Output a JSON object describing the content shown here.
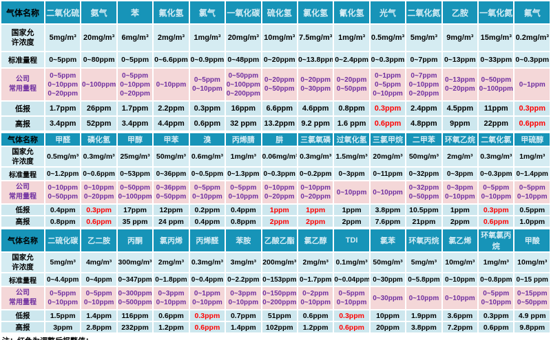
{
  "row_labels": {
    "gas": "气体名称",
    "national": [
      "国家允",
      "许浓度"
    ],
    "standard": "标准量程",
    "company": [
      "公司",
      "常用量程"
    ],
    "low": "低报",
    "high": "高报"
  },
  "note": "注：红色为调整后报警值；",
  "colors": {
    "header_teal": "#1794b8",
    "gas_name_text": "#d5ecf4",
    "cell_light_blue": "#d5ecf2",
    "alarm_row_blue": "#cde7ee",
    "company_pink": "#f4d7d8",
    "company_text_purple": "#7030a0",
    "alarm_red": "#ff0000",
    "grid_white": "#ffffff"
  },
  "sections": [
    {
      "gases": [
        {
          "name": "二氧化硫",
          "national": "5mg/m³",
          "standard": "0~5ppm",
          "company": [
            "0~5ppm",
            "0~10ppm",
            "0~20ppm"
          ],
          "low": "1.7ppm",
          "high": "3.4ppm",
          "red": false
        },
        {
          "name": "氨气",
          "national": "20mg/m³",
          "standard": "0~80ppm",
          "company": [
            "0~100ppm"
          ],
          "low": "26ppm",
          "high": "52ppm",
          "red": false
        },
        {
          "name": "苯",
          "national": "6mg/m³",
          "standard": "0~5ppm",
          "company": [
            "0~5ppm",
            "0~10ppm",
            "0~20ppm"
          ],
          "low": "1.7ppm",
          "high": "3.4ppm",
          "red": false
        },
        {
          "name": "氟化氢",
          "national": "2mg/m³",
          "standard": "0~6.6ppm",
          "company": [
            "0~10ppm"
          ],
          "low": "2.2ppm",
          "high": "4.4ppm",
          "red": false
        },
        {
          "name": "氯气",
          "national": "1mg/m³",
          "standard": "0~0.9ppm",
          "company": [
            "0~5ppm",
            "0~10ppm"
          ],
          "low": "0.3ppm",
          "high": "0.6ppm",
          "red": false
        },
        {
          "name": "一氧化碳",
          "national": "20mg/m³",
          "standard": "0~48ppm",
          "company": [
            "0~50ppm",
            "0~100ppm",
            "0~200ppm"
          ],
          "low": "16ppm",
          "high": "32 ppm",
          "red": false
        },
        {
          "name": "硫化氢",
          "national": "10mg/m³",
          "standard": "0~20ppm",
          "company": [
            "0~20ppm",
            "0~50ppm"
          ],
          "low": "6.6ppm",
          "high": "13.2ppm",
          "red": false
        },
        {
          "name": "氯化氢",
          "national": "7.5mg/m³",
          "standard": "0~13.8ppm",
          "company": [
            "0~20ppm",
            "0~30ppm"
          ],
          "low": "4.6ppm",
          "high": "9.2 ppm",
          "red": false
        },
        {
          "name": "氰化氢",
          "national": "1mg/m³",
          "standard": "0~2.4ppm",
          "company": [
            "0~20ppm",
            "0~50ppm"
          ],
          "low": "0.8ppm",
          "high": "1.6 ppm",
          "red": false
        },
        {
          "name": "光气",
          "national": "0.5mg/m³",
          "standard": "0~0.3ppm",
          "company": [
            "0~1ppm",
            "0~5ppm",
            "0~10ppm"
          ],
          "low": "0.3ppm",
          "high": "0.6ppm",
          "red": true
        },
        {
          "name": "二氧化氮",
          "national": "5mg/m³",
          "standard": "0~7ppm",
          "company": [
            "0~7ppm",
            "0~10ppm",
            "0~20ppm"
          ],
          "low": "2.4ppm",
          "high": "4.8ppm",
          "red": false
        },
        {
          "name": "乙胺",
          "national": "9mg/m³",
          "standard": "0~13ppm",
          "company": [
            "0~13ppm",
            "0~20ppm"
          ],
          "low": "4.5ppm",
          "high": "9ppm",
          "red": false
        },
        {
          "name": "一氧化氮",
          "national": "15mg/m³",
          "standard": "0~33ppm",
          "company": [
            "0~50ppm",
            "0~100ppm"
          ],
          "low": "11ppm",
          "high": "22ppm",
          "red": false
        },
        {
          "name": "氟气",
          "national": "0.2mg/m³",
          "standard": "0~0.3ppm",
          "company": [
            "0~1ppm"
          ],
          "low": "0.3ppm",
          "high": "0.6ppm",
          "red": true
        }
      ]
    },
    {
      "gases": [
        {
          "name": "甲醛",
          "national": "0.5mg/m³",
          "standard": "0~1.2ppm",
          "company": [
            "0~10ppm",
            "0~50ppm"
          ],
          "low": "0.4ppm",
          "high": "0.8ppm",
          "red": false
        },
        {
          "name": "磷化氢",
          "national": "0.3mg/m³",
          "standard": "0~0.6ppm",
          "company": [
            "0~10ppm",
            "0~20ppm"
          ],
          "low": "0.3ppm",
          "high": "0.6ppm",
          "red": true
        },
        {
          "name": "甲醇",
          "national": "25mg/m³",
          "standard": "0~53ppm",
          "company": [
            "0~50ppm",
            "0~100ppm"
          ],
          "low": "17ppm",
          "high": "35 ppm",
          "red": false
        },
        {
          "name": "甲苯",
          "national": "50mg/m³",
          "standard": "0~36ppm",
          "company": [
            "0~36ppm",
            "0~50ppm"
          ],
          "low": "12ppm",
          "high": "24 ppm",
          "red": false
        },
        {
          "name": "溴",
          "national": "0.6mg/m³",
          "standard": "0~0.5ppm",
          "company": [
            "0~5ppm",
            "0~10ppm"
          ],
          "low": "0.2ppm",
          "high": "0.4ppm",
          "red": false
        },
        {
          "name": "丙烯腈",
          "national": "1mg/m³",
          "standard": "0~1.3ppm",
          "company": [
            "0~5ppm",
            "0~10ppm"
          ],
          "low": "0.4ppm",
          "high": "0.8ppm",
          "red": false
        },
        {
          "name": "肼",
          "national": "0.06mg/m³",
          "standard": "0~0.3ppm",
          "company": [
            "0~10ppm",
            "0~20ppm"
          ],
          "low": "1ppm",
          "high": "2ppm",
          "red": true
        },
        {
          "name": "三氯氧磷",
          "national": "0.3mg/m³",
          "standard": "0~0.2ppm",
          "company": [
            "0~10ppm",
            "0~20ppm"
          ],
          "low": "1ppm",
          "high": "2ppm",
          "red": true
        },
        {
          "name": "过氧化氢",
          "national": "1.5mg/m³",
          "standard": "0~3ppm",
          "company": [
            "0~10ppm"
          ],
          "low": "1ppm",
          "high": "2ppm",
          "red": false
        },
        {
          "name": "三氯甲烷",
          "national": "20mg/m³",
          "standard": "0~11ppm",
          "company": [
            "0~10ppm"
          ],
          "low": "3.8ppm",
          "high": "7.6ppm",
          "red": false
        },
        {
          "name": "二甲苯",
          "national": "50mg/m³",
          "standard": "0~32ppm",
          "company": [
            "0~32ppm",
            "0~50ppm"
          ],
          "low": "10.5ppm",
          "high": "21ppm",
          "red": false
        },
        {
          "name": "环氧乙烷",
          "national": "2mg/m³",
          "standard": "0~3ppm",
          "company": [
            "0~3ppm",
            "0~10ppm"
          ],
          "low": "1ppm",
          "high": "2ppm",
          "red": false
        },
        {
          "name": "二氧化氯",
          "national": "0.3mg/m³",
          "standard": "0~0.3ppm",
          "company": [
            "0~5ppm",
            "0~10ppm"
          ],
          "low": "0.3ppm",
          "high": "0.6ppm",
          "red": true
        },
        {
          "name": "甲硫醇",
          "national": "1mg/m³",
          "standard": "0~1.4ppm",
          "company": [
            "0~5ppm",
            "0~10ppm"
          ],
          "low": "0.5ppm",
          "high": "1.0ppm",
          "red": false
        }
      ]
    },
    {
      "gases": [
        {
          "name": "二硫化碳",
          "national": "5mg/m³",
          "standard": "0~4.4ppm",
          "company": [
            "0~5ppm",
            "0~10ppm"
          ],
          "low": "1.5ppm",
          "high": "3ppm",
          "red": false
        },
        {
          "name": "乙二胺",
          "national": "4mg/m³",
          "standard": "0~4ppm",
          "company": [
            "0~5ppm",
            "0~10ppm"
          ],
          "low": "1.4ppm",
          "high": "2.8ppm",
          "red": false
        },
        {
          "name": "丙酮",
          "national": "300mg/m³",
          "standard": "0~347ppm",
          "company": [
            "0~300ppm",
            "0~500ppm"
          ],
          "low": "116ppm",
          "high": "232ppm",
          "red": false
        },
        {
          "name": "氯丙烯",
          "national": "2mg/m³",
          "standard": "0~1.8ppm",
          "company": [
            "0~3ppm",
            "0~10ppm"
          ],
          "low": "0.6ppm",
          "high": "1.2ppm",
          "red": false
        },
        {
          "name": "丙烯醛",
          "national": "0.3mg/m³",
          "standard": "0~0.4ppm",
          "company": [
            "0~1ppm",
            "0~10ppm"
          ],
          "low": "0.3ppm",
          "high": "0.6ppm",
          "red": true
        },
        {
          "name": "苯胺",
          "national": "3mg/m³",
          "standard": "0~2.2ppm",
          "company": [
            "0~3ppm",
            "0~10ppm"
          ],
          "low": "0.7ppm",
          "high": "1.4ppm",
          "red": false
        },
        {
          "name": "乙酸乙酯",
          "national": "200mg/m³",
          "standard": "0~153ppm",
          "company": [
            "0~150ppm",
            "0~200ppm"
          ],
          "low": "51ppm",
          "high": "102ppm",
          "red": false
        },
        {
          "name": "氯乙醇",
          "national": "2mg/m³",
          "standard": "0~1.7ppm",
          "company": [
            "0~2ppm",
            "0~10ppm"
          ],
          "low": "0.6ppm",
          "high": "1.2ppm",
          "red": false
        },
        {
          "name": "TDI",
          "national": "0.1mg/m³",
          "standard": "0~0.04ppm",
          "company": [
            "0~5ppm",
            "0~10ppm"
          ],
          "low": "0.3ppm",
          "high": "0.6ppm",
          "red": true
        },
        {
          "name": "氯苯",
          "national": "50mg/m³",
          "standard": "0~30ppm",
          "company": [
            "0~30ppm"
          ],
          "low": "10ppm",
          "high": "20ppm",
          "red": false
        },
        {
          "name": "环氧丙烷",
          "national": "5mg/m³",
          "standard": "0~5.8ppm",
          "company": [
            "0~10ppm"
          ],
          "low": "1.9ppm",
          "high": "3.8ppm",
          "red": false
        },
        {
          "name": "氯乙烯",
          "national": "10mg/m³",
          "standard": "0~10ppm",
          "company": [
            "0~10ppm"
          ],
          "low": "3.6ppm",
          "high": "7.2ppm",
          "red": false
        },
        {
          "name": "环氧氯丙烷",
          "national": "1mg/m³",
          "standard": "0~0.8ppm",
          "company": [
            "0~5ppm",
            "0~10ppm"
          ],
          "low": "0.3ppm",
          "high": "0.6ppm",
          "red": false
        },
        {
          "name": "甲酸",
          "national": "10mg/m³",
          "standard": "0~15 ppm",
          "company": [
            "0~15ppm",
            "0~50ppm"
          ],
          "low": "4.9 ppm",
          "high": "9.8ppm",
          "red": false
        }
      ]
    }
  ]
}
